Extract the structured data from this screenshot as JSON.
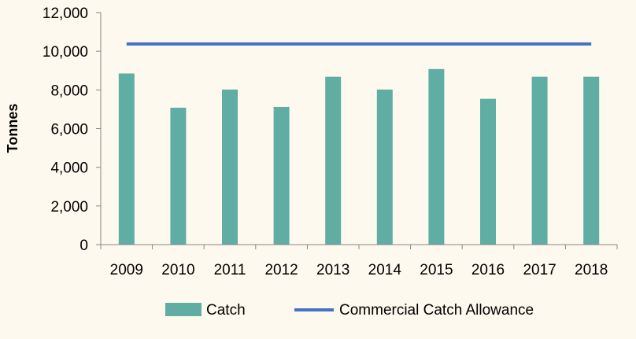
{
  "chart_data": {
    "type": "bar",
    "categories": [
      "2009",
      "2010",
      "2011",
      "2012",
      "2013",
      "2014",
      "2015",
      "2016",
      "2017",
      "2018"
    ],
    "series": [
      {
        "name": "Catch",
        "kind": "bar",
        "color": "#5FADA3",
        "values": [
          8850,
          7080,
          8020,
          7120,
          8680,
          8020,
          9080,
          7540,
          8680,
          8680
        ]
      },
      {
        "name": "Commercial Catch Allowance",
        "kind": "line",
        "color": "#4472C4",
        "values": [
          10380,
          10380,
          10380,
          10380,
          10380,
          10380,
          10380,
          10380,
          10380,
          10380
        ]
      }
    ],
    "title": "",
    "xlabel": "",
    "ylabel": "Tonnes",
    "ylim": [
      0,
      12000
    ],
    "yticks": [
      "0",
      "2,000",
      "4,000",
      "6,000",
      "8,000",
      "10,000",
      "12,000"
    ],
    "grid": false,
    "legend": "bottom",
    "background": "#FEF9EE"
  }
}
